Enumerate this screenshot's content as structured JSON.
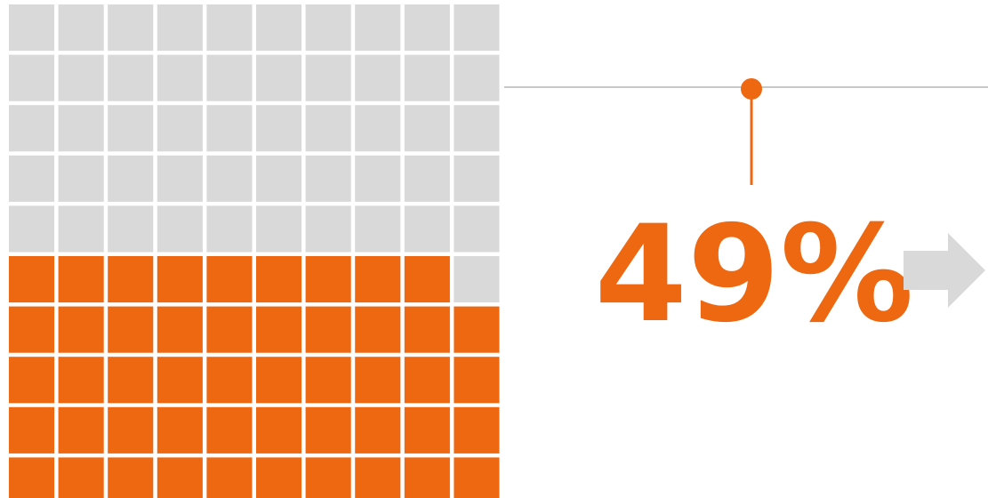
{
  "chart_data": {
    "type": "waffle",
    "values": [
      49
    ],
    "value_labels": [
      "49%"
    ],
    "rows": 10,
    "columns": 10,
    "color": "#ee6711",
    "empty_color": "#d9d9d9"
  }
}
